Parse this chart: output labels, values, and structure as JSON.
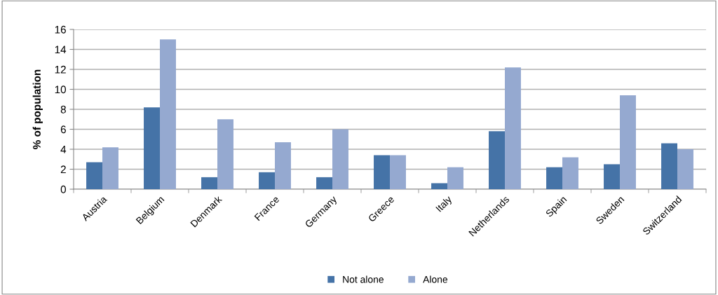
{
  "chart_data": {
    "type": "bar",
    "ylabel": "% of population",
    "categories": [
      "Austria",
      "Belgium",
      "Denmark",
      "France",
      "Germany",
      "Greece",
      "Italy",
      "Netherlands",
      "Spain",
      "Sweden",
      "Switzerland"
    ],
    "series": [
      {
        "name": "Not alone",
        "color": "#4573a7",
        "values": [
          2.7,
          8.2,
          1.2,
          1.7,
          1.2,
          3.4,
          0.6,
          5.8,
          2.2,
          2.5,
          4.6
        ]
      },
      {
        "name": "Alone",
        "color": "#95a9d0",
        "values": [
          4.2,
          15.0,
          7.0,
          4.7,
          6.0,
          3.4,
          2.2,
          12.2,
          3.2,
          9.4,
          4.0
        ]
      }
    ],
    "ylim": [
      0,
      16
    ],
    "yticks": [
      0,
      2,
      4,
      6,
      8,
      10,
      12,
      14,
      16
    ],
    "grid": "y",
    "legend": "bottom"
  }
}
